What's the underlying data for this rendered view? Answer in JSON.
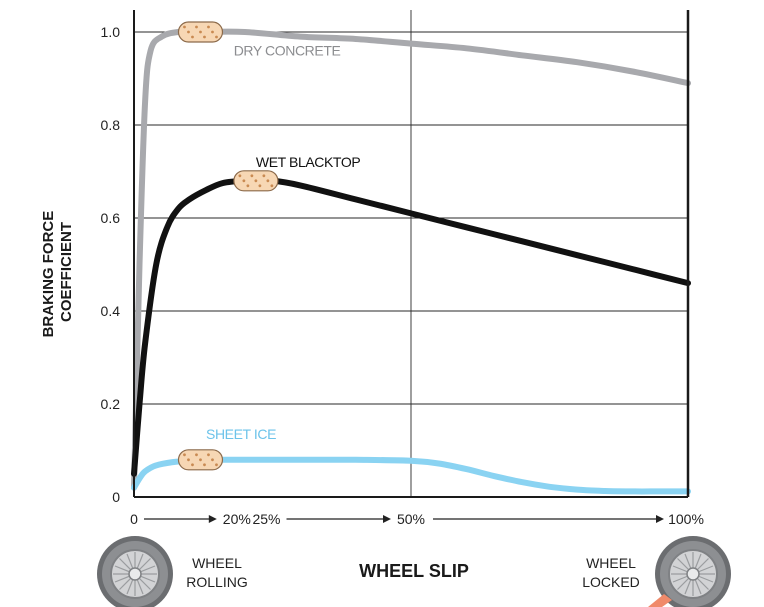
{
  "chart_data": {
    "type": "line",
    "ylabel_lines": [
      "BRAKING FORCE",
      "COEFFICIENT"
    ],
    "xlabel": "WHEEL SLIP",
    "xlim": [
      0,
      100
    ],
    "ylim": [
      0,
      1.0
    ],
    "y_ticks": [
      {
        "value": 0,
        "label": "0"
      },
      {
        "value": 0.2,
        "label": "0.2"
      },
      {
        "value": 0.4,
        "label": "0.4"
      },
      {
        "value": 0.6,
        "label": "0.6"
      },
      {
        "value": 0.8,
        "label": "0.8"
      },
      {
        "value": 1.0,
        "label": "1.0"
      }
    ],
    "x_ticks": [
      {
        "value": 0,
        "label": "0"
      },
      {
        "value": 20,
        "label": "20%"
      },
      {
        "value": 25,
        "label": "25%"
      },
      {
        "value": 50,
        "label": "50%"
      },
      {
        "value": 100,
        "label": "100%"
      }
    ],
    "grid": true,
    "series": [
      {
        "name": "DRY CONCRETE",
        "color": "#a8a9ad",
        "label_color": "#8c8d90",
        "label_at": [
          18,
          0.95
        ],
        "marker_at": [
          12,
          1.0
        ],
        "x": [
          0,
          1,
          2,
          3,
          5,
          8,
          12,
          20,
          30,
          40,
          50,
          60,
          70,
          80,
          90,
          100
        ],
        "y": [
          0.02,
          0.5,
          0.85,
          0.96,
          0.99,
          1.0,
          1.0,
          1.0,
          0.99,
          0.985,
          0.975,
          0.965,
          0.95,
          0.935,
          0.915,
          0.89
        ]
      },
      {
        "name": "WET BLACKTOP",
        "color": "#111111",
        "label_color": "#111111",
        "label_at": [
          22,
          0.71
        ],
        "marker_at": [
          22,
          0.68
        ],
        "x": [
          0,
          1,
          2,
          4,
          6,
          8,
          10,
          13,
          16,
          20,
          25,
          30,
          40,
          50,
          60,
          70,
          80,
          90,
          100
        ],
        "y": [
          0.05,
          0.2,
          0.33,
          0.5,
          0.58,
          0.62,
          0.64,
          0.66,
          0.675,
          0.68,
          0.68,
          0.67,
          0.64,
          0.61,
          0.58,
          0.55,
          0.52,
          0.49,
          0.46
        ]
      },
      {
        "name": "SHEET ICE",
        "color": "#8ad3f2",
        "label_color": "#6cc3ea",
        "label_at": [
          13,
          0.125
        ],
        "marker_at": [
          12,
          0.08
        ],
        "x": [
          0,
          1,
          2,
          4,
          7,
          10,
          14,
          20,
          30,
          40,
          50,
          55,
          60,
          65,
          70,
          75,
          80,
          85,
          90,
          95,
          100
        ],
        "y": [
          0.02,
          0.04,
          0.055,
          0.068,
          0.075,
          0.078,
          0.08,
          0.08,
          0.08,
          0.08,
          0.078,
          0.072,
          0.06,
          0.045,
          0.032,
          0.022,
          0.016,
          0.013,
          0.012,
          0.012,
          0.012
        ]
      }
    ]
  },
  "wheels": {
    "rolling": {
      "line1": "WHEEL",
      "line2": "ROLLING"
    },
    "locked": {
      "line1": "WHEEL",
      "line2": "LOCKED"
    }
  }
}
